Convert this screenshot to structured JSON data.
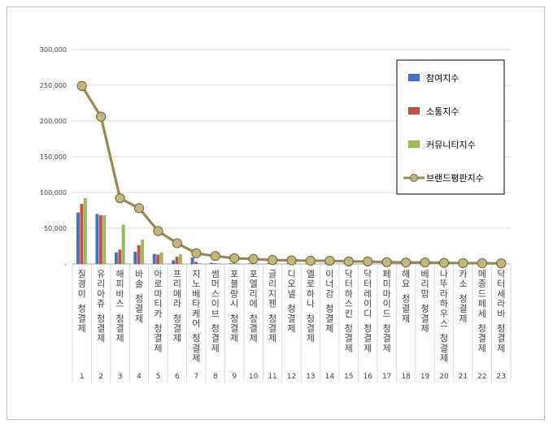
{
  "chart_data": {
    "type": "bar",
    "categories": [
      "질경이 청결제",
      "유리아쥬 청결제",
      "해피바스 청결제",
      "바솔 청결제",
      "아로마티카 청결제",
      "프리메라 청결제",
      "지노베타케어 청결제",
      "썸머스이브 청결제",
      "포블랑시 청결제",
      "포엘리에 청결제",
      "글리지젠 청결제",
      "디오넬 청결제",
      "엘로하나 청결제",
      "이너감 청결제",
      "닥터하스킨 청결제",
      "닥터레이디 청결제",
      "페미마이드 청결제",
      "해요 청결제",
      "베리맘 청결제",
      "나뚜라하우스 청결제",
      "카소 청결제",
      "메종드페세 청결제",
      "닥터세라바 청결제"
    ],
    "x_numbers": [
      "1",
      "2",
      "3",
      "4",
      "5",
      "6",
      "7",
      "8",
      "9",
      "10",
      "11",
      "12",
      "13",
      "14",
      "15",
      "16",
      "17",
      "18",
      "19",
      "20",
      "21",
      "22",
      "23"
    ],
    "series": [
      {
        "name": "참여지수",
        "kind": "bar",
        "color": "#4472c4",
        "values": [
          72000,
          70000,
          16000,
          17000,
          14000,
          5000,
          9000,
          1500,
          500,
          400,
          300,
          300,
          200,
          200,
          200,
          200,
          100,
          100,
          100,
          100,
          100,
          100,
          100
        ]
      },
      {
        "name": "소통지수",
        "kind": "bar",
        "color": "#c0504d",
        "values": [
          84000,
          68000,
          20000,
          26000,
          13000,
          10000,
          3000,
          1000,
          500,
          400,
          300,
          300,
          200,
          200,
          200,
          200,
          100,
          100,
          100,
          100,
          100,
          100,
          100
        ]
      },
      {
        "name": "커뮤니티지수",
        "kind": "bar",
        "color": "#9bbb59",
        "values": [
          92000,
          68000,
          55000,
          34000,
          16000,
          13000,
          1000,
          500,
          300,
          200,
          200,
          200,
          100,
          100,
          100,
          100,
          100,
          100,
          100,
          100,
          100,
          100,
          100
        ]
      },
      {
        "name": "브랜드평판지수",
        "kind": "line",
        "color": "#948a54",
        "marker_color": "#c4b57a",
        "values": [
          249000,
          206000,
          92000,
          78000,
          46000,
          29000,
          15000,
          11000,
          8000,
          7000,
          5500,
          5000,
          4500,
          4500,
          3500,
          3500,
          2500,
          2000,
          2000,
          1500,
          1200,
          1000,
          800
        ]
      }
    ],
    "ylim": [
      0,
      300000
    ],
    "yticks": [
      "-",
      "50,000",
      "100,000",
      "150,000",
      "200,000",
      "250,000",
      "300,000"
    ],
    "legend_position": "top-right",
    "grid": true
  }
}
